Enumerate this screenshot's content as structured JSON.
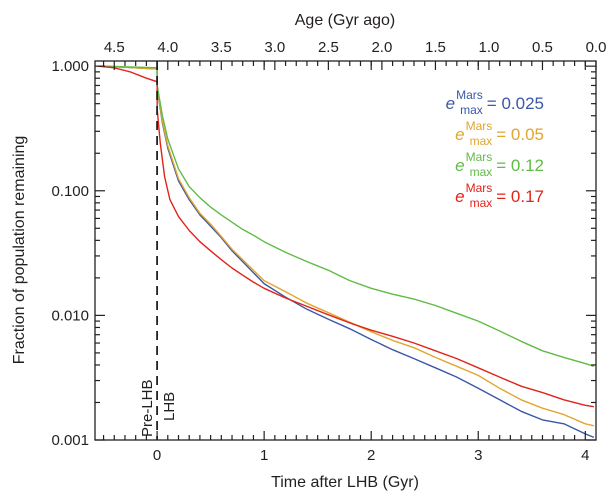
{
  "chart_data": {
    "type": "line",
    "title": "",
    "xlabel": "Time after LHB (Gyr)",
    "x2label": "Age (Gyr ago)",
    "ylabel": "Fraction of population remaining",
    "xlim": [
      -0.58,
      4.1
    ],
    "ylim": [
      0.001,
      1.1
    ],
    "yscale": "log",
    "grid": false,
    "legend_position": "top-right",
    "x_ticks": [
      0,
      1,
      2,
      3,
      4
    ],
    "x_tick_labels": [
      "0",
      "1",
      "2",
      "3",
      "4"
    ],
    "x2_ticks": [
      4.5,
      4.0,
      3.5,
      3.0,
      2.5,
      2.0,
      1.5,
      1.0,
      0.5,
      0.0
    ],
    "x2_tick_labels": [
      "4.5",
      "4.0",
      "3.5",
      "3.0",
      "2.5",
      "2.0",
      "1.5",
      "1.0",
      "0.5",
      "0.0"
    ],
    "y_ticks": [
      0.001,
      0.01,
      0.1,
      1.0
    ],
    "y_tick_labels": [
      "0.001",
      "0.010",
      "0.100",
      "1.000"
    ],
    "phase_labels": {
      "pre": "Pre-LHB",
      "post": "LHB"
    },
    "lhb_time": 0,
    "series": [
      {
        "legend_var": "e",
        "legend_sup": "Mars",
        "legend_sub": "max",
        "legend_value": "= 0.025",
        "color": "#3b57a7",
        "x": [
          -0.55,
          -0.4,
          -0.25,
          -0.1,
          0.0,
          0.001,
          0.05,
          0.1,
          0.2,
          0.3,
          0.4,
          0.5,
          0.6,
          0.7,
          0.8,
          0.9,
          1.0,
          1.2,
          1.4,
          1.6,
          1.8,
          2.0,
          2.2,
          2.4,
          2.6,
          2.8,
          3.0,
          3.2,
          3.4,
          3.6,
          3.8,
          4.0,
          4.08
        ],
        "y": [
          1.0,
          0.99,
          0.975,
          0.96,
          0.95,
          0.66,
          0.35,
          0.22,
          0.12,
          0.085,
          0.064,
          0.052,
          0.042,
          0.033,
          0.027,
          0.022,
          0.018,
          0.014,
          0.0112,
          0.0093,
          0.0078,
          0.0064,
          0.0053,
          0.0045,
          0.0038,
          0.0032,
          0.0026,
          0.0021,
          0.0017,
          0.00145,
          0.00135,
          0.00112,
          0.00105
        ]
      },
      {
        "legend_var": "e",
        "legend_sup": "Mars",
        "legend_sub": "max",
        "legend_value": "= 0.05",
        "color": "#e0a630",
        "x": [
          -0.55,
          -0.4,
          -0.25,
          -0.1,
          0.0,
          0.001,
          0.05,
          0.1,
          0.2,
          0.3,
          0.4,
          0.5,
          0.6,
          0.7,
          0.8,
          0.9,
          1.0,
          1.2,
          1.4,
          1.6,
          1.8,
          2.0,
          2.2,
          2.4,
          2.6,
          2.8,
          3.0,
          3.2,
          3.4,
          3.6,
          3.8,
          4.0,
          4.08
        ],
        "y": [
          1.0,
          0.99,
          0.975,
          0.96,
          0.95,
          0.67,
          0.36,
          0.23,
          0.125,
          0.088,
          0.066,
          0.054,
          0.043,
          0.034,
          0.028,
          0.023,
          0.019,
          0.0155,
          0.0125,
          0.0105,
          0.0088,
          0.0074,
          0.0063,
          0.0055,
          0.0046,
          0.0039,
          0.0033,
          0.0026,
          0.0021,
          0.0018,
          0.0016,
          0.00135,
          0.0013
        ]
      },
      {
        "legend_var": "e",
        "legend_sup": "Mars",
        "legend_sub": "max",
        "legend_value": "= 0.12",
        "color": "#61bb46",
        "x": [
          -0.55,
          -0.4,
          -0.25,
          -0.1,
          0.0,
          0.001,
          0.05,
          0.1,
          0.2,
          0.3,
          0.4,
          0.5,
          0.6,
          0.7,
          0.8,
          0.9,
          1.0,
          1.2,
          1.4,
          1.6,
          1.8,
          2.0,
          2.2,
          2.4,
          2.6,
          2.8,
          3.0,
          3.2,
          3.4,
          3.6,
          3.8,
          4.0,
          4.08
        ],
        "y": [
          1.0,
          0.995,
          0.985,
          0.975,
          0.97,
          0.7,
          0.4,
          0.26,
          0.15,
          0.108,
          0.088,
          0.074,
          0.064,
          0.056,
          0.049,
          0.044,
          0.039,
          0.032,
          0.027,
          0.023,
          0.019,
          0.0165,
          0.0148,
          0.0135,
          0.012,
          0.0104,
          0.009,
          0.0075,
          0.0062,
          0.0052,
          0.0046,
          0.0041,
          0.0039
        ]
      },
      {
        "legend_var": "e",
        "legend_sup": "Mars",
        "legend_sub": "max",
        "legend_value": "= 0.17",
        "color": "#e2231a",
        "x": [
          -0.55,
          -0.4,
          -0.25,
          -0.1,
          0.0,
          0.001,
          0.03,
          0.07,
          0.12,
          0.2,
          0.3,
          0.4,
          0.5,
          0.6,
          0.7,
          0.8,
          0.9,
          1.0,
          1.2,
          1.4,
          1.6,
          1.8,
          2.0,
          2.2,
          2.4,
          2.6,
          2.8,
          3.0,
          3.2,
          3.4,
          3.6,
          3.8,
          4.0,
          4.08
        ],
        "y": [
          1.0,
          0.97,
          0.9,
          0.8,
          0.75,
          0.45,
          0.24,
          0.13,
          0.085,
          0.062,
          0.048,
          0.039,
          0.033,
          0.028,
          0.024,
          0.021,
          0.0185,
          0.0165,
          0.0138,
          0.0118,
          0.0101,
          0.0087,
          0.0076,
          0.0068,
          0.006,
          0.0052,
          0.0045,
          0.0038,
          0.0032,
          0.0027,
          0.0024,
          0.0021,
          0.0019,
          0.00185
        ]
      }
    ]
  }
}
